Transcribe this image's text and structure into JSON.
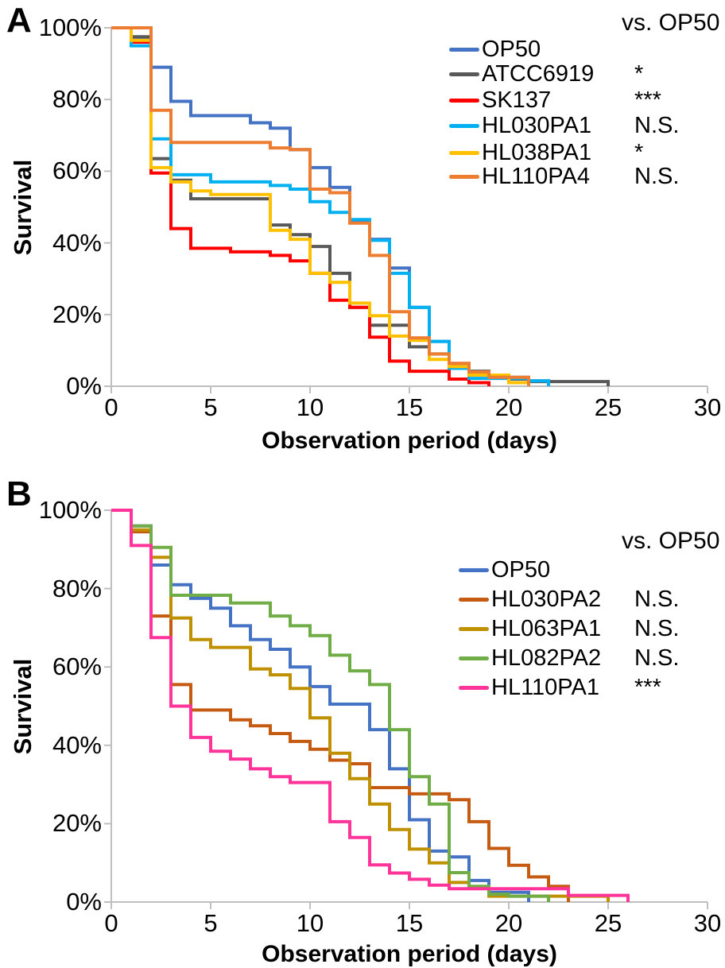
{
  "chart_data": [
    {
      "panel": "A",
      "type": "line",
      "chart_style": "kaplan-meier-step-survival",
      "xlabel": "Observation period (days)",
      "ylabel": "Survival",
      "legend_header": "vs. OP50",
      "xlim": [
        0,
        30
      ],
      "ylim": [
        0,
        100
      ],
      "x_ticks": [
        0,
        5,
        10,
        15,
        20,
        25,
        30
      ],
      "y_tick_labels": [
        "100%",
        "80%",
        "60%",
        "40%",
        "20%",
        "0%"
      ],
      "axis_color": "#BFBFBF",
      "legend_position": "upper right",
      "grid": false,
      "series": [
        {
          "name": "OP50",
          "color": "#4472C4",
          "significance": "",
          "points": [
            [
              0,
              100
            ],
            [
              1,
              97
            ],
            [
              2,
              89
            ],
            [
              3,
              79.5
            ],
            [
              4,
              75.5
            ],
            [
              7,
              73.5
            ],
            [
              8,
              72
            ],
            [
              9,
              66
            ],
            [
              10,
              61
            ],
            [
              11,
              55.5
            ],
            [
              12,
              45.8
            ],
            [
              13,
              41
            ],
            [
              14,
              33
            ],
            [
              15,
              22
            ],
            [
              16,
              12.5
            ],
            [
              17,
              5.5
            ],
            [
              18,
              4
            ],
            [
              19,
              3
            ],
            [
              20,
              2.5
            ],
            [
              21,
              1.5
            ],
            [
              22,
              0
            ]
          ]
        },
        {
          "name": "ATCC6919",
          "color": "#595959",
          "significance": "*",
          "points": [
            [
              0,
              100
            ],
            [
              1,
              97.5
            ],
            [
              2,
              63.5
            ],
            [
              3,
              57.5
            ],
            [
              4,
              52.3
            ],
            [
              8,
              45
            ],
            [
              9,
              42.3
            ],
            [
              10,
              39
            ],
            [
              11,
              31.5
            ],
            [
              12,
              22
            ],
            [
              13,
              17
            ],
            [
              15,
              11
            ],
            [
              16,
              9
            ],
            [
              17,
              5.5
            ],
            [
              18,
              4.2
            ],
            [
              19,
              3
            ],
            [
              20,
              2
            ],
            [
              21,
              1.3
            ],
            [
              25,
              0
            ]
          ]
        },
        {
          "name": "SK137",
          "color": "#FF0000",
          "significance": "***",
          "points": [
            [
              0,
              100
            ],
            [
              1,
              96
            ],
            [
              2,
              59.5
            ],
            [
              3,
              44
            ],
            [
              4,
              38.5
            ],
            [
              6,
              37.5
            ],
            [
              8,
              36.5
            ],
            [
              9,
              35
            ],
            [
              10,
              31.5
            ],
            [
              11,
              24
            ],
            [
              12,
              22
            ],
            [
              13,
              13.7
            ],
            [
              14,
              7
            ],
            [
              15,
              4.2
            ],
            [
              17,
              2
            ],
            [
              18,
              1
            ],
            [
              19,
              0
            ]
          ]
        },
        {
          "name": "HL030PA1",
          "color": "#00B0F0",
          "significance": "N.S.",
          "points": [
            [
              0,
              100
            ],
            [
              1,
              95
            ],
            [
              2,
              69
            ],
            [
              3,
              59
            ],
            [
              5,
              57
            ],
            [
              8,
              56
            ],
            [
              9,
              55
            ],
            [
              10,
              51.5
            ],
            [
              11,
              48.5
            ],
            [
              12,
              46.5
            ],
            [
              13,
              40.7
            ],
            [
              14,
              31.5
            ],
            [
              15,
              22
            ],
            [
              16,
              12.5
            ],
            [
              17,
              5
            ],
            [
              18,
              2.2
            ],
            [
              21,
              1.5
            ],
            [
              22,
              0
            ]
          ]
        },
        {
          "name": "HL038PA1",
          "color": "#FFC000",
          "significance": "*",
          "points": [
            [
              0,
              100
            ],
            [
              1,
              96.5
            ],
            [
              2,
              61
            ],
            [
              3,
              57
            ],
            [
              4,
              54.5
            ],
            [
              5,
              53.5
            ],
            [
              8,
              43.5
            ],
            [
              9,
              41
            ],
            [
              10,
              31.5
            ],
            [
              11,
              29
            ],
            [
              12,
              23.2
            ],
            [
              13,
              19.7
            ],
            [
              14,
              14
            ],
            [
              15,
              12.8
            ],
            [
              16,
              7.5
            ],
            [
              17,
              5.5
            ],
            [
              18,
              3.1
            ],
            [
              20,
              1
            ],
            [
              21,
              0
            ]
          ]
        },
        {
          "name": "HL110PA4",
          "color": "#ED7D31",
          "significance": "N.S.",
          "points": [
            [
              0,
              100
            ],
            [
              2,
              77
            ],
            [
              3,
              68
            ],
            [
              8,
              66.5
            ],
            [
              9,
              66
            ],
            [
              10,
              55
            ],
            [
              11,
              54
            ],
            [
              12,
              45.5
            ],
            [
              13,
              36.5
            ],
            [
              14,
              20.8
            ],
            [
              15,
              13.5
            ],
            [
              16,
              9
            ],
            [
              17,
              6.4
            ],
            [
              18,
              4
            ],
            [
              19,
              2.5
            ],
            [
              21,
              0
            ]
          ]
        }
      ]
    },
    {
      "panel": "B",
      "type": "line",
      "chart_style": "kaplan-meier-step-survival",
      "xlabel": "Observation period (days)",
      "ylabel": "Survival",
      "legend_header": "vs. OP50",
      "xlim": [
        0,
        30
      ],
      "ylim": [
        0,
        100
      ],
      "x_ticks": [
        0,
        5,
        10,
        15,
        20,
        25,
        30
      ],
      "y_tick_labels": [
        "100%",
        "80%",
        "60%",
        "40%",
        "20%",
        "0%"
      ],
      "axis_color": "#BFBFBF",
      "legend_position": "upper right",
      "grid": false,
      "series": [
        {
          "name": "OP50",
          "color": "#4472C4",
          "significance": "",
          "points": [
            [
              0,
              100
            ],
            [
              1,
              96
            ],
            [
              2,
              86
            ],
            [
              3,
              81
            ],
            [
              4,
              77.5
            ],
            [
              5,
              75
            ],
            [
              6,
              70.5
            ],
            [
              7,
              67
            ],
            [
              8,
              64.5
            ],
            [
              9,
              60
            ],
            [
              10,
              55
            ],
            [
              11,
              50.5
            ],
            [
              13,
              44
            ],
            [
              14,
              34
            ],
            [
              15,
              21
            ],
            [
              16,
              13
            ],
            [
              17,
              11.5
            ],
            [
              18,
              5.5
            ],
            [
              19,
              2.5
            ],
            [
              21,
              0
            ]
          ]
        },
        {
          "name": "HL030PA2",
          "color": "#C55A11",
          "significance": "N.S.",
          "points": [
            [
              0,
              100
            ],
            [
              1,
              94.5
            ],
            [
              2,
              73
            ],
            [
              3,
              55.5
            ],
            [
              4,
              49
            ],
            [
              6,
              46.5
            ],
            [
              7,
              45
            ],
            [
              8,
              43
            ],
            [
              9,
              41
            ],
            [
              10,
              39
            ],
            [
              11,
              36.2
            ],
            [
              12,
              35.3
            ],
            [
              13,
              29.2
            ],
            [
              15,
              27.6
            ],
            [
              17,
              26.1
            ],
            [
              18,
              20.5
            ],
            [
              19,
              13.7
            ],
            [
              20,
              9.4
            ],
            [
              21,
              6.4
            ],
            [
              22,
              4
            ],
            [
              23,
              0
            ]
          ]
        },
        {
          "name": "HL063PA1",
          "color": "#BF9000",
          "significance": "N.S.",
          "points": [
            [
              0,
              100
            ],
            [
              1,
              95
            ],
            [
              2,
              88
            ],
            [
              3,
              72.5
            ],
            [
              4,
              67
            ],
            [
              5,
              65
            ],
            [
              7,
              59.5
            ],
            [
              8,
              58
            ],
            [
              9,
              54.5
            ],
            [
              10,
              47
            ],
            [
              11,
              38
            ],
            [
              12,
              31.5
            ],
            [
              13,
              25
            ],
            [
              14,
              18.5
            ],
            [
              15,
              13.5
            ],
            [
              16,
              10
            ],
            [
              17,
              5
            ],
            [
              18,
              3.5
            ],
            [
              19,
              1.5
            ],
            [
              25,
              0
            ]
          ]
        },
        {
          "name": "HL082PA2",
          "color": "#70AD47",
          "significance": "N.S.",
          "points": [
            [
              0,
              100
            ],
            [
              1,
              96
            ],
            [
              2,
              90.5
            ],
            [
              3,
              78.3
            ],
            [
              6,
              76.3
            ],
            [
              8,
              73
            ],
            [
              9,
              70.5
            ],
            [
              10,
              68
            ],
            [
              11,
              63
            ],
            [
              12,
              59
            ],
            [
              13,
              55.5
            ],
            [
              14,
              44
            ],
            [
              15,
              32
            ],
            [
              16,
              25
            ],
            [
              17,
              7.5
            ],
            [
              18,
              4
            ],
            [
              19,
              2
            ],
            [
              20,
              1.5
            ],
            [
              22,
              0
            ]
          ]
        },
        {
          "name": "HL110PA1",
          "color": "#FF3399",
          "significance": "***",
          "points": [
            [
              0,
              100
            ],
            [
              1,
              91
            ],
            [
              2,
              67.5
            ],
            [
              3,
              50
            ],
            [
              4,
              42
            ],
            [
              5,
              38.5
            ],
            [
              6,
              36.5
            ],
            [
              7,
              34
            ],
            [
              8,
              32
            ],
            [
              9,
              30.5
            ],
            [
              11,
              20.5
            ],
            [
              12,
              16.5
            ],
            [
              13,
              9.5
            ],
            [
              14,
              7.4
            ],
            [
              15,
              5.8
            ],
            [
              16,
              4.3
            ],
            [
              17,
              3.4
            ],
            [
              23,
              1.7
            ],
            [
              26,
              0
            ]
          ]
        }
      ]
    }
  ]
}
